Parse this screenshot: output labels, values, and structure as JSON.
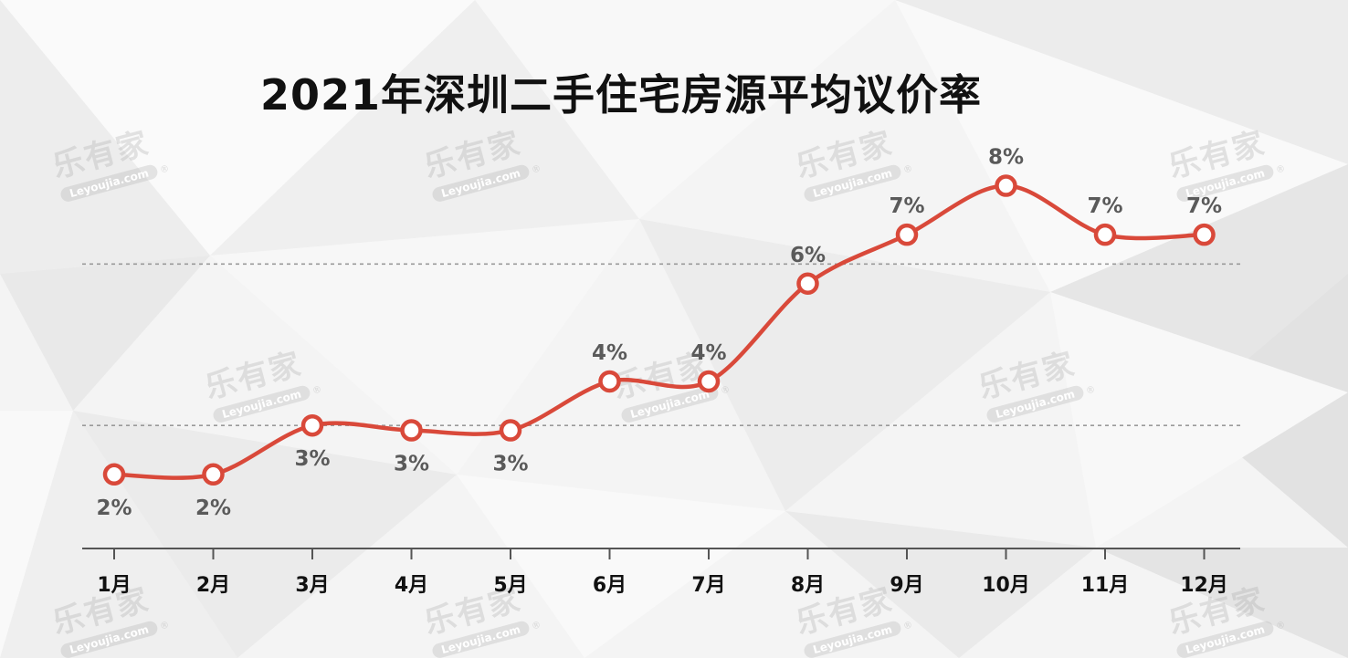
{
  "title": "2021年深圳二手住宅房源平均议价率",
  "watermark": {
    "cn": "乐有家",
    "en": "Leyoujia.com",
    "mark": "®"
  },
  "colors": {
    "line": "#d9493a",
    "marker_fill": "#ffffff",
    "label": "#5a5a5a",
    "axis": "#555555",
    "grid": "#9a9a9a",
    "title": "#111111"
  },
  "chart_data": {
    "type": "line",
    "title": "2021年深圳二手住宅房源平均议价率",
    "categories": [
      "1月",
      "2月",
      "3月",
      "4月",
      "5月",
      "6月",
      "7月",
      "8月",
      "9月",
      "10月",
      "11月",
      "12月"
    ],
    "values": [
      2.0,
      2.0,
      3.0,
      2.9,
      2.9,
      3.9,
      3.9,
      5.9,
      6.9,
      7.9,
      6.9,
      6.9
    ],
    "data_labels": [
      "2%",
      "2%",
      "3%",
      "3%",
      "3%",
      "4%",
      "4%",
      "6%",
      "7%",
      "8%",
      "7%",
      "7%"
    ],
    "label_positions": [
      "below",
      "below",
      "below",
      "below",
      "below",
      "above",
      "above",
      "above",
      "above",
      "above",
      "above",
      "above"
    ],
    "gridlines": [
      3.0,
      6.3
    ],
    "grid_style": "dashed",
    "ylim": [
      0,
      9
    ],
    "xlabel": "",
    "ylabel": "",
    "legend": "none"
  }
}
